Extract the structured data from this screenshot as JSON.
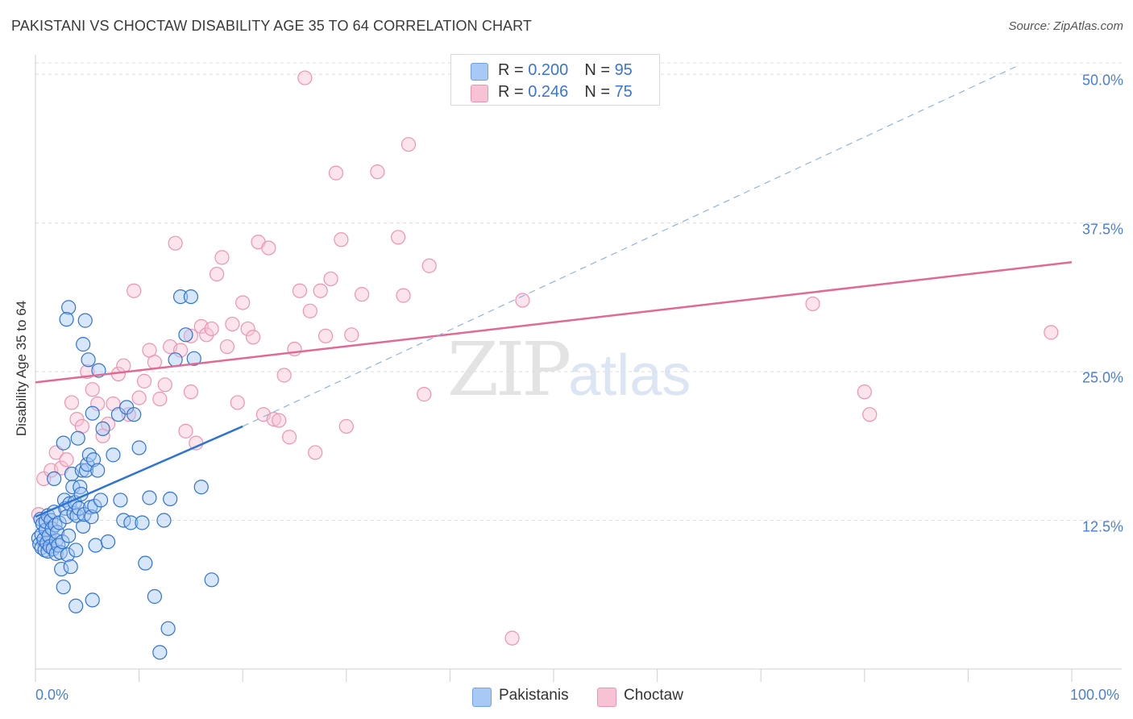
{
  "title": "PAKISTANI VS CHOCTAW DISABILITY AGE 35 TO 64 CORRELATION CHART",
  "source": "Source: ZipAtlas.com",
  "colors": {
    "blue": "#6fa3e8",
    "blue_fill": "#a8c8f5",
    "blue_line": "#2f74d0",
    "pink": "#ee93b1",
    "pink_fill": "#f7c3d4",
    "pink_line": "#e06a93",
    "axis_text": "#4a7fd4"
  },
  "legend": {
    "rows": [
      {
        "r_label": "R = ",
        "r_value": "0.200",
        "n_label": "N = ",
        "n_value": "95"
      },
      {
        "r_label": "R = ",
        "r_value": "0.246",
        "n_label": "N = ",
        "n_value": "75"
      }
    ]
  },
  "bottom_legend": {
    "series1": "Pakistanis",
    "series2": "Choctaw"
  },
  "watermark": {
    "zip": "ZIP",
    "atlas": "atlas"
  },
  "chart_data": {
    "type": "scatter",
    "title": "PAKISTANI VS CHOCTAW DISABILITY AGE 35 TO 64 CORRELATION CHART",
    "xlabel": "",
    "ylabel": "Disability Age 35 to 64",
    "xlim": [
      0,
      100
    ],
    "ylim": [
      0,
      51.5
    ],
    "x_ticks": {
      "0": "0.0%",
      "100": "100.0%"
    },
    "y_ticks": [
      {
        "value": 12.5,
        "label": "12.5%"
      },
      {
        "value": 25.0,
        "label": "25.0%"
      },
      {
        "value": 37.5,
        "label": "37.5%"
      },
      {
        "value": 50.0,
        "label": "50.0%"
      }
    ],
    "series": [
      {
        "name": "Pakistanis",
        "R": 0.2,
        "N": 95,
        "trend_solid": [
          [
            0,
            12.8
          ],
          [
            20,
            20.4
          ]
        ],
        "trend_dashed": [
          [
            20,
            20.4
          ],
          [
            95,
            50.8
          ]
        ],
        "points": [
          [
            0.3,
            11.0
          ],
          [
            0.4,
            10.5
          ],
          [
            0.5,
            12.6
          ],
          [
            0.6,
            10.2
          ],
          [
            0.6,
            11.3
          ],
          [
            0.7,
            12.2
          ],
          [
            0.8,
            10.9
          ],
          [
            0.9,
            10.0
          ],
          [
            1.0,
            11.7
          ],
          [
            1.0,
            12.4
          ],
          [
            1.1,
            10.6
          ],
          [
            1.2,
            9.9
          ],
          [
            1.2,
            12.9
          ],
          [
            1.3,
            11.2
          ],
          [
            1.4,
            10.3
          ],
          [
            1.5,
            12.5
          ],
          [
            1.6,
            11.8
          ],
          [
            1.7,
            10.1
          ],
          [
            1.8,
            13.2
          ],
          [
            1.9,
            12.1
          ],
          [
            2.0,
            10.8
          ],
          [
            2.0,
            9.7
          ],
          [
            2.1,
            11.5
          ],
          [
            2.2,
            10.4
          ],
          [
            2.3,
            12.3
          ],
          [
            2.4,
            9.8
          ],
          [
            2.5,
            8.4
          ],
          [
            2.6,
            10.7
          ],
          [
            2.7,
            19.0
          ],
          [
            2.8,
            14.2
          ],
          [
            2.9,
            13.5
          ],
          [
            3.0,
            12.8
          ],
          [
            3.1,
            9.6
          ],
          [
            3.2,
            11.2
          ],
          [
            3.3,
            13.9
          ],
          [
            3.4,
            8.6
          ],
          [
            3.5,
            16.4
          ],
          [
            3.6,
            15.3
          ],
          [
            3.7,
            13.1
          ],
          [
            3.8,
            14.0
          ],
          [
            3.9,
            10.0
          ],
          [
            4.0,
            12.9
          ],
          [
            4.1,
            19.4
          ],
          [
            4.2,
            13.5
          ],
          [
            4.3,
            15.3
          ],
          [
            4.4,
            14.7
          ],
          [
            4.5,
            16.7
          ],
          [
            4.6,
            12.0
          ],
          [
            4.7,
            13.0
          ],
          [
            4.8,
            29.3
          ],
          [
            4.9,
            16.7
          ],
          [
            5.0,
            17.2
          ],
          [
            5.1,
            26.0
          ],
          [
            5.2,
            18.0
          ],
          [
            5.3,
            13.6
          ],
          [
            5.4,
            12.8
          ],
          [
            5.5,
            21.5
          ],
          [
            5.6,
            17.6
          ],
          [
            5.7,
            13.7
          ],
          [
            5.8,
            10.4
          ],
          [
            6.0,
            16.7
          ],
          [
            6.3,
            14.2
          ],
          [
            6.5,
            20.2
          ],
          [
            7.0,
            10.7
          ],
          [
            7.5,
            18.0
          ],
          [
            8.0,
            21.4
          ],
          [
            8.2,
            14.2
          ],
          [
            8.5,
            12.5
          ],
          [
            8.8,
            22.0
          ],
          [
            9.2,
            12.3
          ],
          [
            9.5,
            21.4
          ],
          [
            10.0,
            18.6
          ],
          [
            10.3,
            12.3
          ],
          [
            10.6,
            8.9
          ],
          [
            11.0,
            14.4
          ],
          [
            11.5,
            6.1
          ],
          [
            12.0,
            1.4
          ],
          [
            12.4,
            12.5
          ],
          [
            12.8,
            3.4
          ],
          [
            13.0,
            14.3
          ],
          [
            13.5,
            26.0
          ],
          [
            14.0,
            31.3
          ],
          [
            14.5,
            28.1
          ],
          [
            15.0,
            31.3
          ],
          [
            15.3,
            26.1
          ],
          [
            16.0,
            15.3
          ],
          [
            17.0,
            7.5
          ],
          [
            3.2,
            30.4
          ],
          [
            4.6,
            27.3
          ],
          [
            6.1,
            25.1
          ],
          [
            2.7,
            6.9
          ],
          [
            3.9,
            5.3
          ],
          [
            5.5,
            5.8
          ],
          [
            3.0,
            29.4
          ],
          [
            1.8,
            16.0
          ]
        ]
      },
      {
        "name": "Choctaw",
        "R": 0.246,
        "N": 75,
        "trend_solid": [
          [
            0,
            24.1
          ],
          [
            100,
            34.2
          ]
        ],
        "points": [
          [
            0.3,
            13.0
          ],
          [
            0.8,
            16.0
          ],
          [
            1.5,
            16.7
          ],
          [
            2.0,
            18.2
          ],
          [
            2.5,
            16.9
          ],
          [
            3.0,
            17.6
          ],
          [
            3.5,
            22.4
          ],
          [
            4.0,
            21.0
          ],
          [
            4.5,
            20.4
          ],
          [
            5.0,
            25.0
          ],
          [
            5.5,
            23.5
          ],
          [
            6.0,
            22.3
          ],
          [
            6.5,
            19.6
          ],
          [
            7.0,
            20.6
          ],
          [
            7.5,
            22.3
          ],
          [
            8.0,
            24.8
          ],
          [
            8.5,
            25.5
          ],
          [
            9.0,
            21.4
          ],
          [
            9.5,
            31.8
          ],
          [
            10.0,
            22.8
          ],
          [
            10.5,
            24.2
          ],
          [
            11.0,
            26.8
          ],
          [
            11.5,
            25.8
          ],
          [
            12.0,
            22.7
          ],
          [
            12.5,
            23.9
          ],
          [
            13.0,
            27.1
          ],
          [
            13.5,
            35.8
          ],
          [
            14.0,
            26.8
          ],
          [
            14.5,
            20.0
          ],
          [
            15.0,
            23.3
          ],
          [
            15.5,
            19.0
          ],
          [
            16.0,
            28.8
          ],
          [
            16.5,
            28.1
          ],
          [
            17.0,
            28.6
          ],
          [
            17.5,
            33.2
          ],
          [
            18.0,
            34.6
          ],
          [
            18.5,
            27.1
          ],
          [
            19.0,
            29.0
          ],
          [
            19.5,
            22.4
          ],
          [
            20.0,
            30.8
          ],
          [
            20.5,
            28.6
          ],
          [
            21.0,
            27.9
          ],
          [
            21.5,
            35.9
          ],
          [
            22.0,
            21.4
          ],
          [
            22.5,
            35.4
          ],
          [
            23.0,
            21.0
          ],
          [
            23.5,
            20.9
          ],
          [
            24.0,
            24.7
          ],
          [
            24.5,
            19.5
          ],
          [
            25.0,
            26.9
          ],
          [
            25.5,
            31.8
          ],
          [
            26.0,
            49.7
          ],
          [
            26.5,
            30.1
          ],
          [
            27.0,
            18.2
          ],
          [
            27.5,
            31.8
          ],
          [
            28.0,
            28.0
          ],
          [
            28.5,
            32.8
          ],
          [
            29.0,
            41.7
          ],
          [
            29.5,
            36.1
          ],
          [
            30.0,
            20.4
          ],
          [
            30.5,
            28.1
          ],
          [
            31.5,
            31.5
          ],
          [
            33.0,
            41.8
          ],
          [
            35.0,
            36.3
          ],
          [
            35.5,
            31.4
          ],
          [
            36.0,
            44.1
          ],
          [
            37.5,
            23.1
          ],
          [
            38.0,
            33.9
          ],
          [
            46.0,
            2.6
          ],
          [
            47.0,
            31.0
          ],
          [
            75.0,
            30.7
          ],
          [
            80.0,
            23.3
          ],
          [
            80.5,
            21.4
          ],
          [
            98.0,
            28.3
          ],
          [
            15.0,
            28.0
          ]
        ]
      }
    ]
  }
}
